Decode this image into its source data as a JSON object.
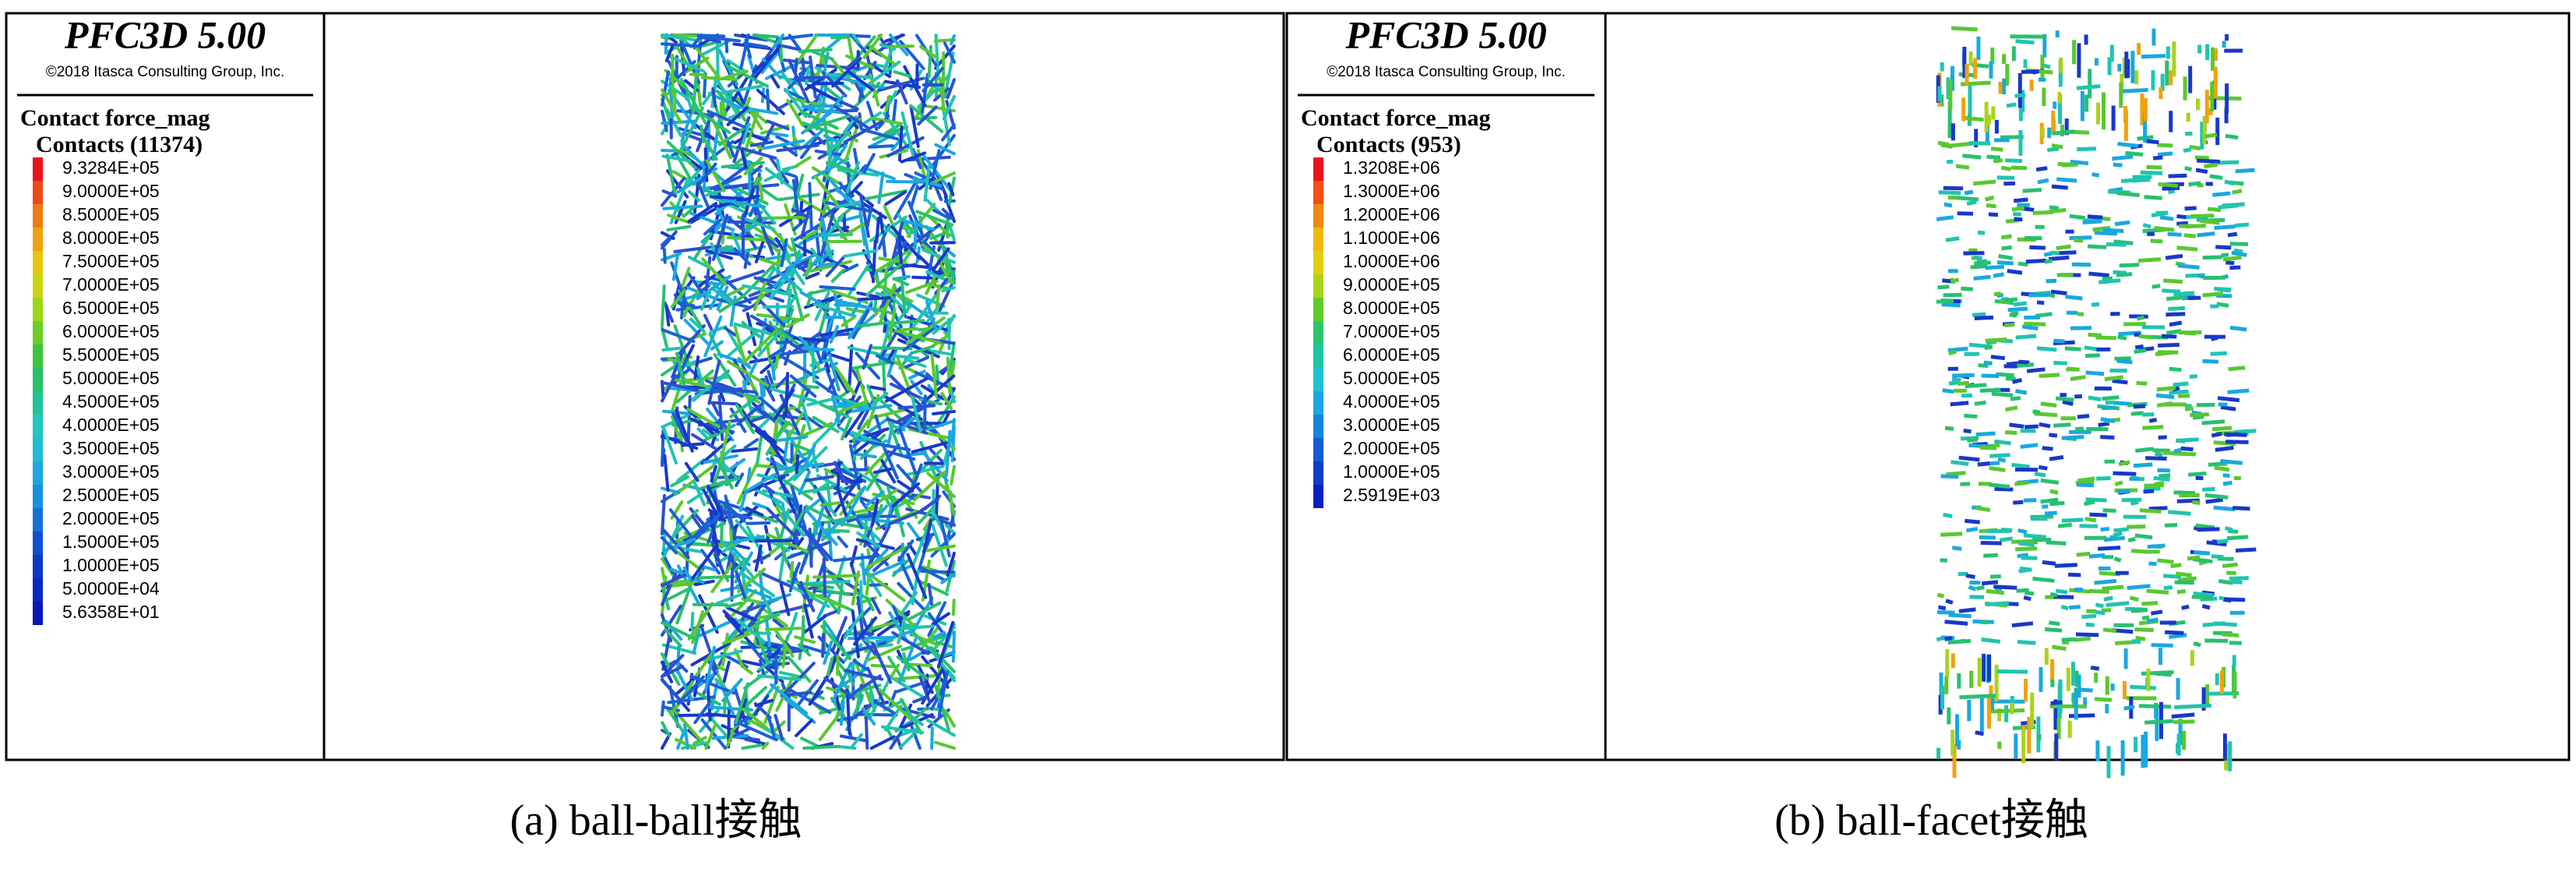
{
  "panels": [
    {
      "software": "PFC3D 5.00",
      "copyright": "©2018 Itasca Consulting Group, Inc.",
      "plot_title": "Contact force_mag",
      "contacts_label": "Contacts (11374)",
      "legend": {
        "labels": [
          "9.3284E+05",
          "9.0000E+05",
          "8.5000E+05",
          "8.0000E+05",
          "7.5000E+05",
          "7.0000E+05",
          "6.5000E+05",
          "6.0000E+05",
          "5.5000E+05",
          "5.0000E+05",
          "4.5000E+05",
          "4.0000E+05",
          "3.5000E+05",
          "3.0000E+05",
          "2.5000E+05",
          "2.0000E+05",
          "1.5000E+05",
          "1.0000E+05",
          "5.0000E+04",
          "5.6358E+01"
        ],
        "colors": [
          "#e8141b",
          "#ee4a14",
          "#f07a10",
          "#f0a20c",
          "#e8c40a",
          "#c8d40e",
          "#a0d418",
          "#6ccc28",
          "#3cc43c",
          "#28c068",
          "#20c498",
          "#20c8c0",
          "#20bcd8",
          "#1aa8e0",
          "#1890e0",
          "#1470d8",
          "#1050d0",
          "#0c38c8",
          "#0a28c0",
          "#0818b8"
        ]
      },
      "caption": "(a) ball-ball接触"
    },
    {
      "software": "PFC3D 5.00",
      "copyright": "©2018 Itasca Consulting Group, Inc.",
      "plot_title": "Contact force_mag",
      "contacts_label": "Contacts (953)",
      "legend": {
        "labels": [
          "1.3208E+06",
          "1.3000E+06",
          "1.2000E+06",
          "1.1000E+06",
          "1.0000E+06",
          "9.0000E+05",
          "8.0000E+05",
          "7.0000E+05",
          "6.0000E+05",
          "5.0000E+05",
          "4.0000E+05",
          "3.0000E+05",
          "2.0000E+05",
          "1.0000E+05",
          "2.5919E+03"
        ],
        "colors": [
          "#e8141b",
          "#f05014",
          "#f08810",
          "#f0b80c",
          "#e0d00c",
          "#a8d418",
          "#60cc2c",
          "#30c468",
          "#20c4a8",
          "#20c0d0",
          "#1aa8e0",
          "#1484dc",
          "#105cd0",
          "#0c3cc8",
          "#0820c0"
        ]
      },
      "caption": "(b) ball-facet接触"
    }
  ]
}
